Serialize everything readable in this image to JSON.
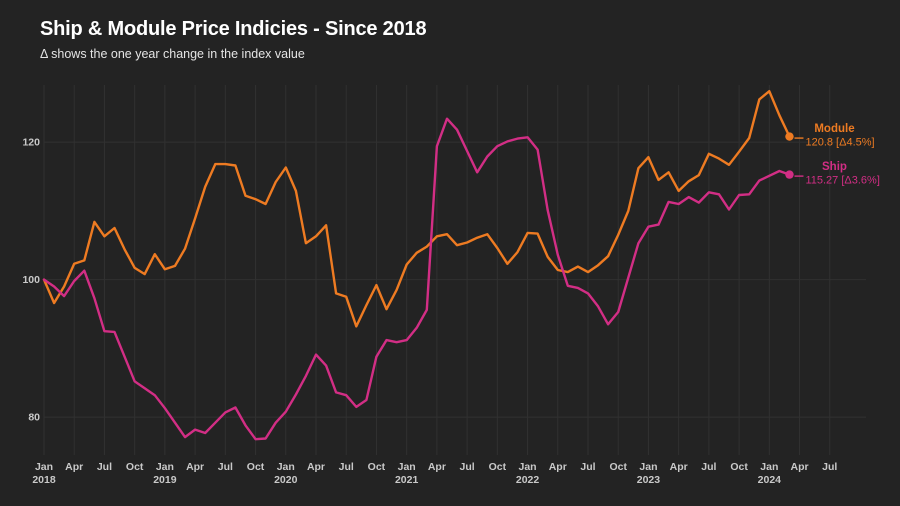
{
  "title": "Ship & Module Price Indicies - Since 2018",
  "subtitle": "Δ shows the one year change in the index value",
  "colors": {
    "background": "#232323",
    "grid": "#313131",
    "axis_text": "#c9c9c9",
    "title_text": "#ffffff",
    "subtitle_text": "#e4e4e4",
    "module": "#ee7b22",
    "ship": "#d22e85"
  },
  "chart_data": {
    "type": "line",
    "title": "Ship & Module Price Indicies - Since 2018",
    "subtitle": "Δ shows the one year change in the index value",
    "x_unit": "month",
    "x_start": "2018-01",
    "x_end": "2024-03",
    "grid": true,
    "ylim": [
      74.5,
      128.3
    ],
    "y_ticks": [
      80,
      100,
      120
    ],
    "x_tick_labels": [
      {
        "month": "Jan",
        "year": "2018"
      },
      {
        "month": "Apr"
      },
      {
        "month": "Jul"
      },
      {
        "month": "Oct"
      },
      {
        "month": "Jan",
        "year": "2019"
      },
      {
        "month": "Apr"
      },
      {
        "month": "Jul"
      },
      {
        "month": "Oct"
      },
      {
        "month": "Jan",
        "year": "2020"
      },
      {
        "month": "Apr"
      },
      {
        "month": "Jul"
      },
      {
        "month": "Oct"
      },
      {
        "month": "Jan",
        "year": "2021"
      },
      {
        "month": "Apr"
      },
      {
        "month": "Jul"
      },
      {
        "month": "Oct"
      },
      {
        "month": "Jan",
        "year": "2022"
      },
      {
        "month": "Apr"
      },
      {
        "month": "Jul"
      },
      {
        "month": "Oct"
      },
      {
        "month": "Jan",
        "year": "2023"
      },
      {
        "month": "Apr"
      },
      {
        "month": "Jul"
      },
      {
        "month": "Oct"
      },
      {
        "month": "Jan",
        "year": "2024"
      },
      {
        "month": "Apr"
      },
      {
        "month": "Jul"
      }
    ],
    "series": [
      {
        "name": "Module",
        "color": "#ee7b22",
        "last_value": 120.8,
        "yoy_change_pct": 4.5,
        "end_label_name": "Module",
        "end_label_value": "120.8 [Δ4.5%]",
        "values": [
          100,
          96.6,
          99,
          102.3,
          102.8,
          108.4,
          106.3,
          107.5,
          104.4,
          101.7,
          100.8,
          103.7,
          101.5,
          102,
          104.5,
          108.9,
          113.5,
          116.8,
          116.8,
          116.6,
          112.2,
          111.7,
          111,
          114.2,
          116.3,
          112.9,
          105.3,
          106.3,
          107.9,
          98,
          97.5,
          93.2,
          96.3,
          99.2,
          95.7,
          98.5,
          102.2,
          103.9,
          104.8,
          106.3,
          106.6,
          105,
          105.4,
          106.1,
          106.6,
          104.6,
          102.3,
          104,
          106.8,
          106.7,
          103.3,
          101.4,
          101.1,
          101.9,
          101.1,
          102.1,
          103.4,
          106.5,
          110,
          116.2,
          117.8,
          114.5,
          115.6,
          112.9,
          114.3,
          115.2,
          118.3,
          117.6,
          116.7,
          118.6,
          120.6,
          126.2,
          127.4,
          123.9,
          120.8
        ]
      },
      {
        "name": "Ship",
        "color": "#d22e85",
        "last_value": 115.27,
        "yoy_change_pct": 3.6,
        "end_label_name": "Ship",
        "end_label_value": "115.27 [Δ3.6%]",
        "values": [
          100,
          99,
          97.6,
          99.8,
          101.3,
          97.3,
          92.5,
          92.4,
          88.8,
          85.2,
          84.2,
          83.2,
          81.3,
          79.2,
          77.1,
          78.2,
          77.7,
          79.2,
          80.7,
          81.4,
          78.8,
          76.8,
          76.9,
          79.2,
          80.8,
          83.3,
          86,
          89.1,
          87.5,
          83.6,
          83.2,
          81.5,
          82.5,
          88.8,
          91.2,
          90.9,
          91.2,
          93,
          95.6,
          119.4,
          123.4,
          121.8,
          118.7,
          115.6,
          117.9,
          119.4,
          120.1,
          120.5,
          120.7,
          118.9,
          110.1,
          103.6,
          99.1,
          98.8,
          98,
          96.1,
          93.5,
          95.3,
          100.3,
          105.3,
          107.7,
          108,
          111.3,
          111,
          112,
          111.2,
          112.7,
          112.4,
          110.2,
          112.3,
          112.4,
          114.4,
          115.1,
          115.8,
          115.27
        ]
      }
    ]
  }
}
